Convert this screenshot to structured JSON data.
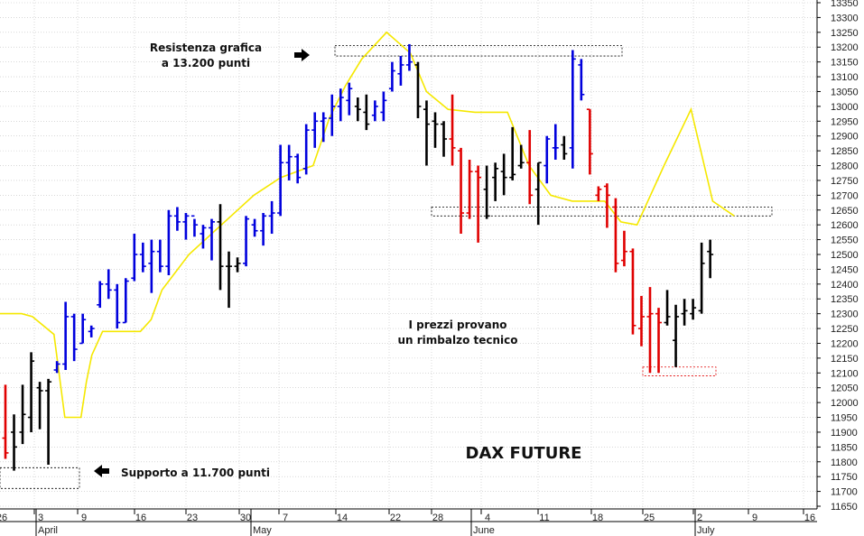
{
  "chart_data": {
    "type": "ohlc-bar",
    "title": "DAX FUTURE",
    "y_axis": {
      "min": 11650,
      "max": 13350,
      "step": 50,
      "ticks": [
        11650,
        11700,
        11750,
        11800,
        11850,
        11900,
        11950,
        12000,
        12050,
        12100,
        12150,
        12200,
        12250,
        12300,
        12350,
        12400,
        12450,
        12500,
        12550,
        12600,
        12650,
        12700,
        12750,
        12800,
        12850,
        12900,
        12950,
        13000,
        13050,
        13100,
        13150,
        13200,
        13250,
        13300,
        13350
      ],
      "side": "right"
    },
    "x_axis": {
      "day_ticks": [
        "26",
        "3",
        "9",
        "16",
        "23",
        "30",
        "7",
        "14",
        "22",
        "28",
        "4",
        "11",
        "18",
        "25",
        "2",
        "9",
        "16"
      ],
      "months": [
        "April",
        "May",
        "June",
        "July"
      ]
    },
    "grid": true,
    "colors": {
      "blue": "#0000dd",
      "black": "#000000",
      "red": "#e00000",
      "yellow_line": "#f5e800",
      "grid": "#c0c0c0"
    },
    "bars": [
      {
        "c": "red",
        "h": 12060,
        "l": 11810,
        "o": 11880,
        "cl": 11830
      },
      {
        "c": "black",
        "h": 11960,
        "l": 11770,
        "o": 11900,
        "cl": 11850
      },
      {
        "c": "black",
        "h": 12060,
        "l": 11860,
        "o": 11900,
        "cl": 11960
      },
      {
        "c": "black",
        "h": 12170,
        "l": 11900,
        "o": 11950,
        "cl": 12140
      },
      {
        "c": "black",
        "h": 12070,
        "l": 11910,
        "o": 12050,
        "cl": 12040
      },
      {
        "c": "black",
        "h": 12080,
        "l": 11790,
        "o": 12040,
        "cl": 12070
      },
      {
        "c": "blue",
        "h": 12140,
        "l": 12100,
        "o": 12110,
        "cl": 12130
      },
      {
        "c": "blue",
        "h": 12340,
        "l": 12110,
        "o": 12130,
        "cl": 12290
      },
      {
        "c": "blue",
        "h": 12300,
        "l": 12140,
        "o": 12290,
        "cl": 12180
      },
      {
        "c": "blue",
        "h": 12300,
        "l": 12200,
        "o": 12200,
        "cl": 12280
      },
      {
        "c": "blue",
        "h": 12260,
        "l": 12220,
        "o": 12240,
        "cl": 12250
      },
      {
        "c": "blue",
        "h": 12410,
        "l": 12320,
        "o": 12330,
        "cl": 12400
      },
      {
        "c": "blue",
        "h": 12450,
        "l": 12350,
        "o": 12400,
        "cl": 12380
      },
      {
        "c": "blue",
        "h": 12400,
        "l": 12250,
        "o": 12380,
        "cl": 12270
      },
      {
        "c": "blue",
        "h": 12420,
        "l": 12270,
        "o": 12270,
        "cl": 12410
      },
      {
        "c": "blue",
        "h": 12570,
        "l": 12410,
        "o": 12420,
        "cl": 12500
      },
      {
        "c": "blue",
        "h": 12540,
        "l": 12440,
        "o": 12500,
        "cl": 12460
      },
      {
        "c": "blue",
        "h": 12550,
        "l": 12370,
        "o": 12470,
        "cl": 12510
      },
      {
        "c": "blue",
        "h": 12550,
        "l": 12440,
        "o": 12510,
        "cl": 12460
      },
      {
        "c": "blue",
        "h": 12650,
        "l": 12430,
        "o": 12460,
        "cl": 12630
      },
      {
        "c": "blue",
        "h": 12660,
        "l": 12580,
        "o": 12630,
        "cl": 12610
      },
      {
        "c": "blue",
        "h": 12640,
        "l": 12550,
        "o": 12610,
        "cl": 12630
      },
      {
        "c": "blue",
        "h": 12620,
        "l": 12560,
        "o": 12630,
        "cl": 12600
      },
      {
        "c": "blue",
        "h": 12600,
        "l": 12520,
        "o": 12570,
        "cl": 12590
      },
      {
        "c": "blue",
        "h": 12620,
        "l": 12480,
        "o": 12590,
        "cl": 12610
      },
      {
        "c": "black",
        "h": 12670,
        "l": 12380,
        "o": 12610,
        "cl": 12460
      },
      {
        "c": "black",
        "h": 12510,
        "l": 12320,
        "o": 12460,
        "cl": 12460
      },
      {
        "c": "black",
        "h": 12490,
        "l": 12440,
        "o": 12460,
        "cl": 12470
      },
      {
        "c": "blue",
        "h": 12630,
        "l": 12460,
        "o": 12470,
        "cl": 12620
      },
      {
        "c": "blue",
        "h": 12620,
        "l": 12560,
        "o": 12600,
        "cl": 12580
      },
      {
        "c": "blue",
        "h": 12640,
        "l": 12530,
        "o": 12580,
        "cl": 12630
      },
      {
        "c": "blue",
        "h": 12680,
        "l": 12570,
        "o": 12630,
        "cl": 12640
      },
      {
        "c": "blue",
        "h": 12870,
        "l": 12630,
        "o": 12640,
        "cl": 12810
      },
      {
        "c": "blue",
        "h": 12870,
        "l": 12750,
        "o": 12810,
        "cl": 12830
      },
      {
        "c": "blue",
        "h": 12840,
        "l": 12740,
        "o": 12830,
        "cl": 12760
      },
      {
        "c": "blue",
        "h": 12940,
        "l": 12770,
        "o": 12790,
        "cl": 12920
      },
      {
        "c": "blue",
        "h": 12980,
        "l": 12860,
        "o": 12920,
        "cl": 12950
      },
      {
        "c": "blue",
        "h": 12980,
        "l": 12880,
        "o": 12950,
        "cl": 12960
      },
      {
        "c": "blue",
        "h": 13040,
        "l": 12900,
        "o": 12960,
        "cl": 13000
      },
      {
        "c": "blue",
        "h": 13060,
        "l": 12950,
        "o": 13000,
        "cl": 13030
      },
      {
        "c": "blue",
        "h": 13080,
        "l": 12970,
        "o": 13020,
        "cl": 13060
      },
      {
        "c": "black",
        "h": 13030,
        "l": 12950,
        "o": 13000,
        "cl": 12990
      },
      {
        "c": "black",
        "h": 13040,
        "l": 12920,
        "o": 12980,
        "cl": 12940
      },
      {
        "c": "blue",
        "h": 13020,
        "l": 12950,
        "o": 12970,
        "cl": 13000
      },
      {
        "c": "blue",
        "h": 13050,
        "l": 12950,
        "o": 12980,
        "cl": 13020
      },
      {
        "c": "blue",
        "h": 13150,
        "l": 13050,
        "o": 13060,
        "cl": 13120
      },
      {
        "c": "blue",
        "h": 13170,
        "l": 13070,
        "o": 13110,
        "cl": 13140
      },
      {
        "c": "blue",
        "h": 13210,
        "l": 13120,
        "o": 13140,
        "cl": 13150
      },
      {
        "c": "black",
        "h": 13150,
        "l": 12960,
        "o": 13140,
        "cl": 13000
      },
      {
        "c": "black",
        "h": 13020,
        "l": 12800,
        "o": 12990,
        "cl": 12940
      },
      {
        "c": "black",
        "h": 12980,
        "l": 12860,
        "o": 12950,
        "cl": 12940
      },
      {
        "c": "black",
        "h": 12950,
        "l": 12830,
        "o": 12940,
        "cl": 12890
      },
      {
        "c": "red",
        "h": 13040,
        "l": 12800,
        "o": 12890,
        "cl": 12860
      },
      {
        "c": "red",
        "h": 12860,
        "l": 12570,
        "o": 12850,
        "cl": 12640
      },
      {
        "c": "red",
        "h": 12820,
        "l": 12620,
        "o": 12640,
        "cl": 12780
      },
      {
        "c": "red",
        "h": 12800,
        "l": 12540,
        "o": 12780,
        "cl": 12760
      },
      {
        "c": "black",
        "h": 12800,
        "l": 12620,
        "o": 12720,
        "cl": 12630
      },
      {
        "c": "black",
        "h": 12810,
        "l": 12680,
        "o": 12760,
        "cl": 12790
      },
      {
        "c": "black",
        "h": 12840,
        "l": 12700,
        "o": 12780,
        "cl": 12760
      },
      {
        "c": "black",
        "h": 12930,
        "l": 12750,
        "o": 12760,
        "cl": 12770
      },
      {
        "c": "black",
        "h": 12870,
        "l": 12790,
        "o": 12800,
        "cl": 12810
      },
      {
        "c": "red",
        "h": 12920,
        "l": 12670,
        "o": 12810,
        "cl": 12700
      },
      {
        "c": "black",
        "h": 12810,
        "l": 12600,
        "o": 12720,
        "cl": 12810
      },
      {
        "c": "blue",
        "h": 12900,
        "l": 12740,
        "o": 12800,
        "cl": 12890
      },
      {
        "c": "blue",
        "h": 12940,
        "l": 12820,
        "o": 12860,
        "cl": 12860
      },
      {
        "c": "black",
        "h": 12900,
        "l": 12820,
        "o": 12870,
        "cl": 12840
      },
      {
        "c": "blue",
        "h": 13190,
        "l": 12790,
        "o": 12860,
        "cl": 13160
      },
      {
        "c": "blue",
        "h": 13160,
        "l": 13020,
        "o": 13140,
        "cl": 13040
      },
      {
        "c": "red",
        "h": 12990,
        "l": 12770,
        "o": 12990,
        "cl": 12840
      },
      {
        "c": "red",
        "h": 12730,
        "l": 12680,
        "o": 12700,
        "cl": 12720
      },
      {
        "c": "red",
        "h": 12740,
        "l": 12590,
        "o": 12730,
        "cl": 12700
      },
      {
        "c": "red",
        "h": 12690,
        "l": 12440,
        "o": 12660,
        "cl": 12470
      },
      {
        "c": "red",
        "h": 12580,
        "l": 12460,
        "o": 12480,
        "cl": 12510
      },
      {
        "c": "red",
        "h": 12520,
        "l": 12230,
        "o": 12510,
        "cl": 12260
      },
      {
        "c": "red",
        "h": 12360,
        "l": 12190,
        "o": 12250,
        "cl": 12290
      },
      {
        "c": "red",
        "h": 12390,
        "l": 12100,
        "o": 12290,
        "cl": 12300
      },
      {
        "c": "red",
        "h": 12320,
        "l": 12100,
        "o": 12300,
        "cl": 12270
      },
      {
        "c": "black",
        "h": 12380,
        "l": 12260,
        "o": 12270,
        "cl": 12290
      },
      {
        "c": "black",
        "h": 12330,
        "l": 12120,
        "o": 12210,
        "cl": 12290
      },
      {
        "c": "black",
        "h": 12350,
        "l": 12260,
        "o": 12300,
        "cl": 12310
      },
      {
        "c": "black",
        "h": 12350,
        "l": 12280,
        "o": 12300,
        "cl": 12320
      },
      {
        "c": "black",
        "h": 12540,
        "l": 12300,
        "o": 12310,
        "cl": 12470
      },
      {
        "c": "black",
        "h": 12550,
        "l": 12420,
        "o": 12510,
        "cl": 12500
      }
    ],
    "yellow_line_points": [
      [
        12300,
        0
      ],
      [
        12300,
        20
      ],
      [
        12290,
        30
      ],
      [
        12230,
        50
      ],
      [
        11950,
        60
      ],
      [
        11950,
        75
      ],
      [
        12070,
        80
      ],
      [
        12160,
        85
      ],
      [
        12240,
        95
      ],
      [
        12240,
        130
      ],
      [
        12280,
        140
      ],
      [
        12380,
        150
      ],
      [
        12500,
        175
      ],
      [
        12600,
        205
      ],
      [
        12700,
        235
      ],
      [
        12760,
        260
      ],
      [
        12800,
        290
      ],
      [
        12960,
        305
      ],
      [
        13070,
        320
      ],
      [
        13160,
        335
      ],
      [
        13250,
        358
      ],
      [
        13180,
        380
      ],
      [
        13050,
        395
      ],
      [
        12990,
        415
      ],
      [
        12980,
        440
      ],
      [
        12980,
        470
      ],
      [
        12800,
        490
      ],
      [
        12700,
        510
      ],
      [
        12680,
        530
      ],
      [
        12680,
        560
      ],
      [
        12610,
        575
      ],
      [
        12600,
        590
      ],
      [
        12800,
        615
      ],
      [
        12990,
        640
      ],
      [
        12680,
        660
      ],
      [
        12630,
        680
      ]
    ],
    "annotations": [
      {
        "text_lines": [
          "Resistenza grafica",
          "a 13.200 punti"
        ],
        "arrow": "right"
      },
      {
        "text_lines": [
          "I prezzi provano",
          "un rimbalzo tecnico"
        ]
      },
      {
        "text_lines": [
          "Supporto a 11.700 punti"
        ],
        "arrow": "left"
      }
    ],
    "levels": [
      {
        "name": "resistance",
        "from": 13170,
        "to": 13205
      },
      {
        "name": "support",
        "from": 11710,
        "to": 11780
      },
      {
        "name": "mid-resistance",
        "from": 12630,
        "to": 12660
      },
      {
        "name": "low-support",
        "from": 12090,
        "to": 12120
      }
    ]
  }
}
